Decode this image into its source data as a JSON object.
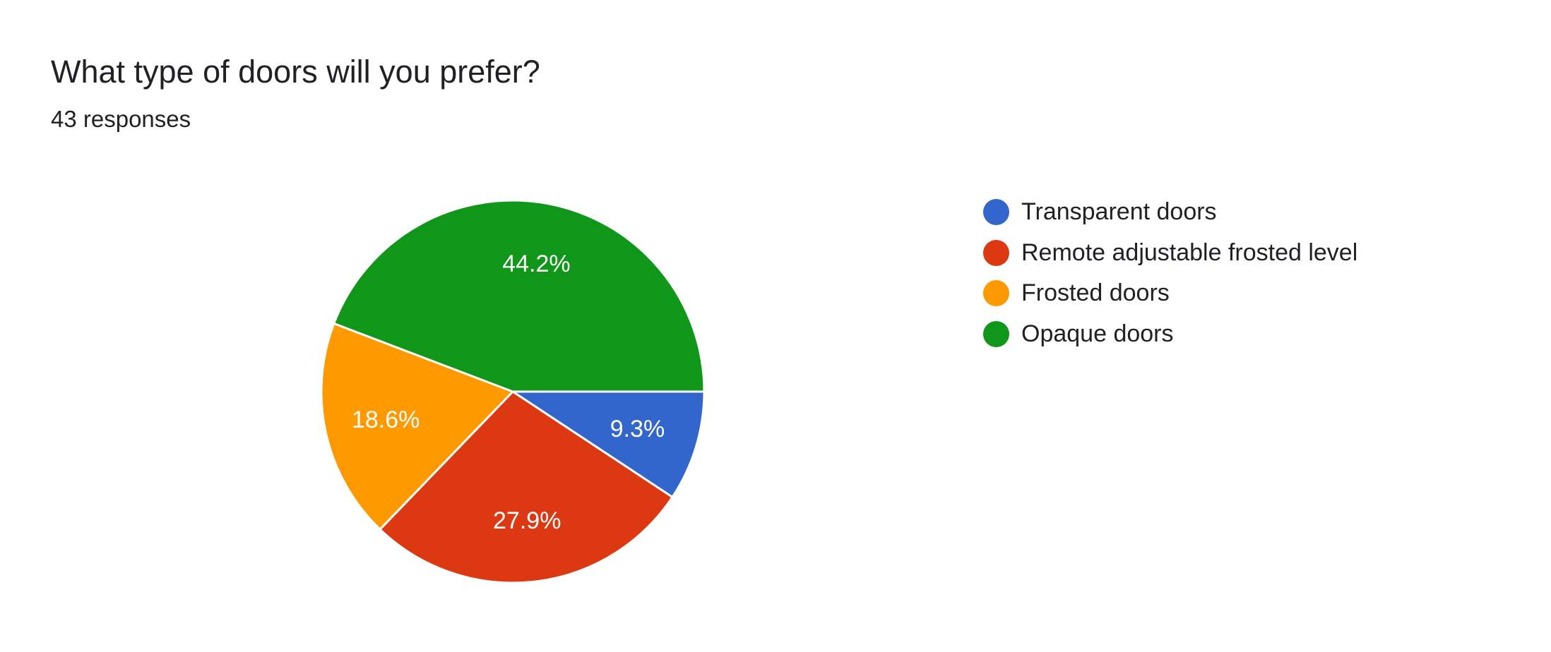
{
  "header": {
    "title": "What type of doors will you prefer?",
    "subtitle": "43 responses"
  },
  "chart_data": {
    "type": "pie",
    "title": "What type of doors will you prefer?",
    "subtitle": "43 responses",
    "categories": [
      "Transparent doors",
      "Remote adjustable frosted level",
      "Frosted doors",
      "Opaque doors"
    ],
    "values": [
      9.3,
      27.9,
      18.6,
      44.2
    ],
    "value_labels": [
      "9.3%",
      "27.9%",
      "18.6%",
      "44.2%"
    ],
    "colors": [
      "#3366cc",
      "#dc3912",
      "#ff9900",
      "#109618"
    ],
    "legend_position": "right",
    "start": "3 o'clock, clockwise"
  }
}
